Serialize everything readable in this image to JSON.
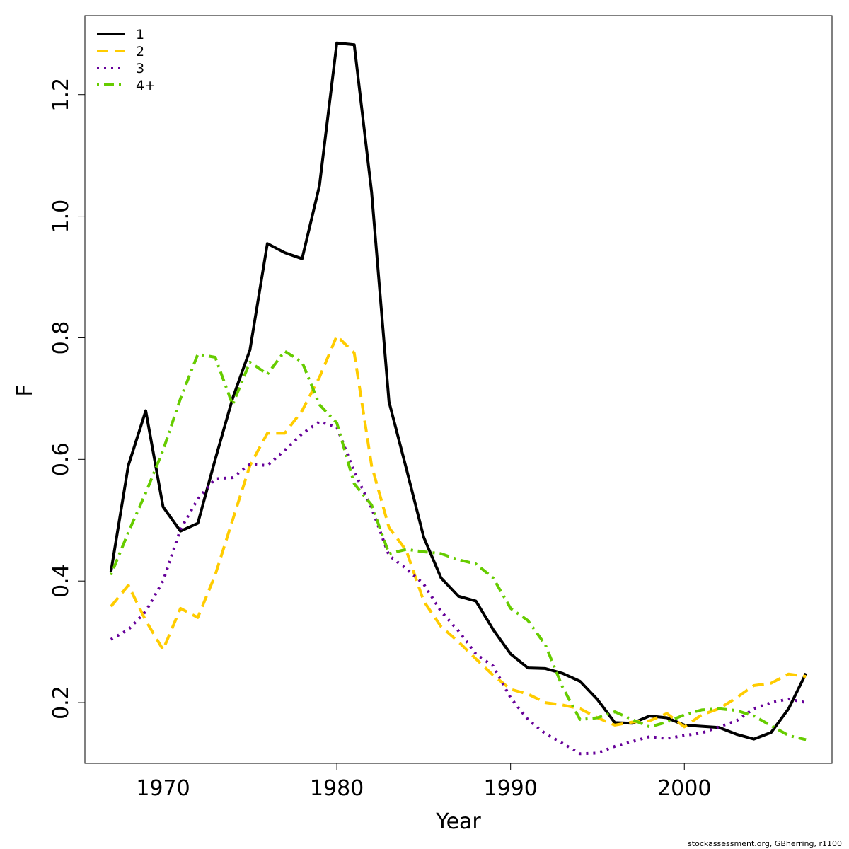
{
  "chart_data": {
    "type": "line",
    "xlabel": "Year",
    "ylabel": "F",
    "xlim": [
      1965.5,
      2008.5
    ],
    "ylim": [
      0.1,
      1.33
    ],
    "xticks": [
      1970,
      1980,
      1990,
      2000
    ],
    "xtick_labels": [
      "1970",
      "1980",
      "1990",
      "2000"
    ],
    "yticks": [
      0.2,
      0.4,
      0.6,
      0.8,
      1.0,
      1.2
    ],
    "ytick_labels": [
      "0.2",
      "0.4",
      "0.6",
      "0.8",
      "1.0",
      "1.2"
    ],
    "grid": false,
    "legend_position": "top-left",
    "x": [
      1967,
      1968,
      1969,
      1970,
      1971,
      1972,
      1973,
      1974,
      1975,
      1976,
      1977,
      1978,
      1979,
      1980,
      1981,
      1982,
      1983,
      1984,
      1985,
      1986,
      1987,
      1988,
      1989,
      1990,
      1991,
      1992,
      1993,
      1994,
      1995,
      1996,
      1997,
      1998,
      1999,
      2000,
      2001,
      2002,
      2003,
      2004,
      2005,
      2006,
      2007
    ],
    "series": [
      {
        "name": "1",
        "color": "#000000",
        "dash": "solid",
        "values": [
          0.415,
          0.59,
          0.68,
          0.522,
          0.482,
          0.495,
          0.6,
          0.7,
          0.78,
          0.955,
          0.94,
          0.93,
          1.05,
          1.285,
          1.282,
          1.04,
          0.695,
          0.585,
          0.472,
          0.405,
          0.375,
          0.367,
          0.32,
          0.28,
          0.257,
          0.256,
          0.248,
          0.235,
          0.205,
          0.167,
          0.166,
          0.178,
          0.175,
          0.163,
          0.161,
          0.159,
          0.148,
          0.14,
          0.151,
          0.19,
          0.248
        ]
      },
      {
        "name": "2",
        "color": "#FFCC00",
        "dash": "dashed",
        "values": [
          0.358,
          0.393,
          0.335,
          0.287,
          0.355,
          0.34,
          0.41,
          0.5,
          0.59,
          0.643,
          0.643,
          0.68,
          0.735,
          0.803,
          0.775,
          0.59,
          0.488,
          0.45,
          0.367,
          0.325,
          0.3,
          0.272,
          0.245,
          0.222,
          0.214,
          0.2,
          0.196,
          0.19,
          0.175,
          0.163,
          0.168,
          0.17,
          0.182,
          0.16,
          0.18,
          0.19,
          0.208,
          0.228,
          0.232,
          0.247,
          0.243
        ]
      },
      {
        "name": "3",
        "color": "#660099",
        "dash": "dotted",
        "values": [
          0.304,
          0.32,
          0.35,
          0.4,
          0.485,
          0.535,
          0.568,
          0.57,
          0.592,
          0.59,
          0.615,
          0.642,
          0.662,
          0.653,
          0.58,
          0.52,
          0.442,
          0.42,
          0.395,
          0.35,
          0.318,
          0.28,
          0.26,
          0.208,
          0.172,
          0.149,
          0.133,
          0.116,
          0.117,
          0.128,
          0.136,
          0.144,
          0.141,
          0.146,
          0.15,
          0.16,
          0.17,
          0.19,
          0.2,
          0.206,
          0.2
        ]
      },
      {
        "name": "4+",
        "color": "#66CC00",
        "dash": "dotdash",
        "values": [
          0.41,
          0.48,
          0.545,
          0.615,
          0.7,
          0.773,
          0.768,
          0.69,
          0.76,
          0.74,
          0.778,
          0.76,
          0.69,
          0.66,
          0.56,
          0.525,
          0.445,
          0.452,
          0.448,
          0.445,
          0.435,
          0.428,
          0.405,
          0.355,
          0.335,
          0.295,
          0.225,
          0.172,
          0.175,
          0.185,
          0.172,
          0.16,
          0.168,
          0.18,
          0.188,
          0.19,
          0.187,
          0.178,
          0.162,
          0.146,
          0.139
        ]
      }
    ]
  },
  "credit": "stockassessment.org, GBherring, r1100"
}
